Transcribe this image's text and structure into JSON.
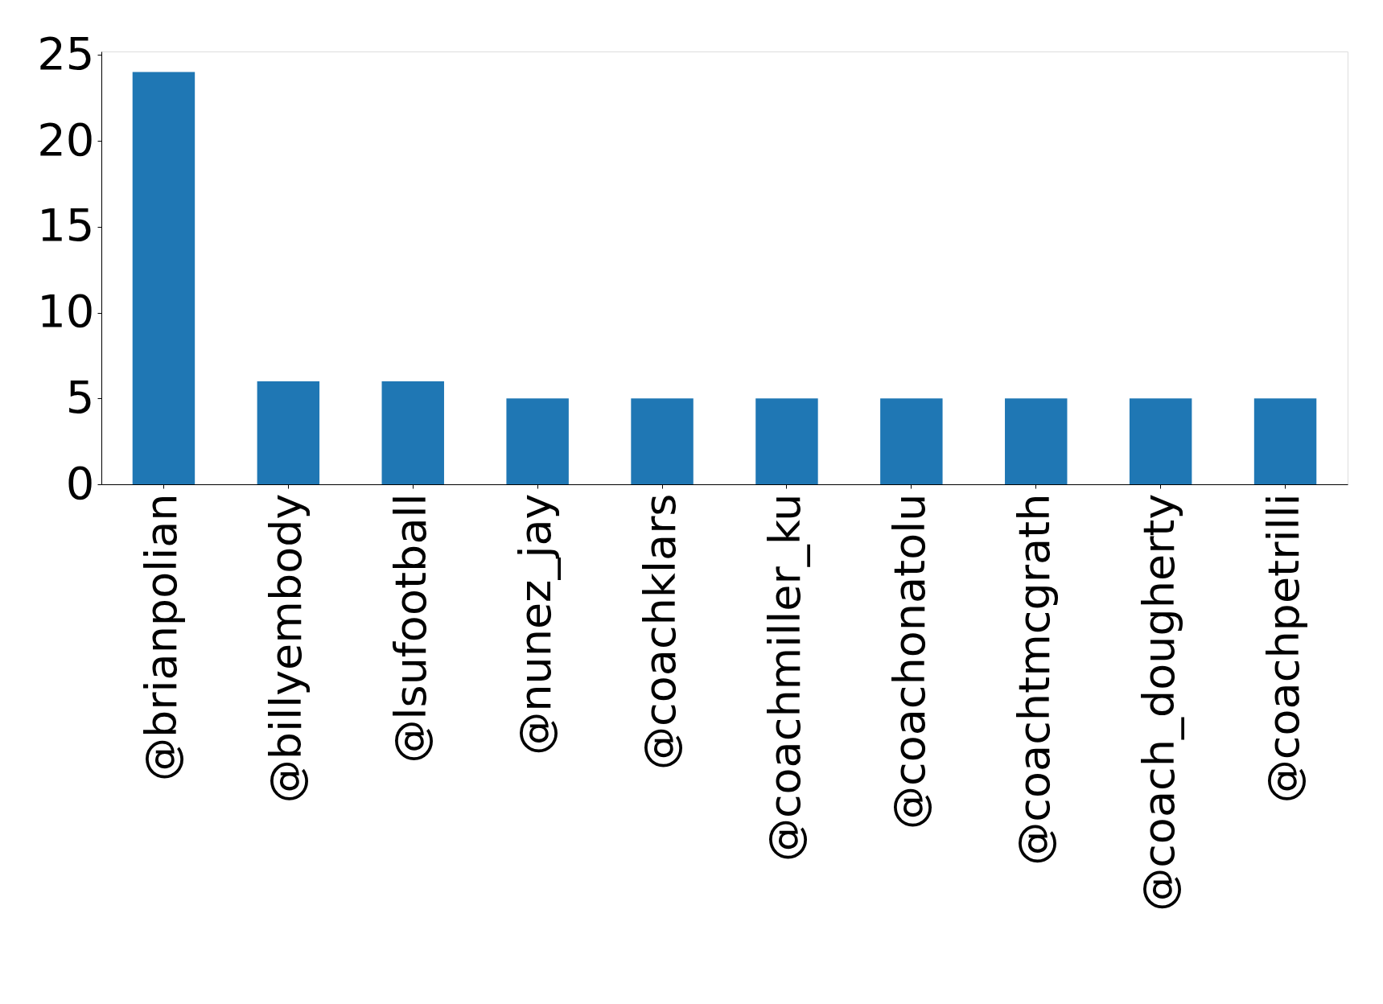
{
  "chart_data": {
    "type": "bar",
    "categories": [
      "@brianpolian",
      "@billyembody",
      "@lsufootball",
      "@nunez_jay",
      "@coachklars",
      "@coachmiller_ku",
      "@coachonatolu",
      "@coachtmcgrath",
      "@coach_dougherty",
      "@coachpetrilli"
    ],
    "values": [
      24,
      6,
      6,
      5,
      5,
      5,
      5,
      5,
      5,
      5
    ],
    "color": "#1f77b4",
    "ylim": [
      0,
      25.2
    ],
    "yticks": [
      0,
      5,
      10,
      15,
      20,
      25
    ],
    "grid": false
  }
}
